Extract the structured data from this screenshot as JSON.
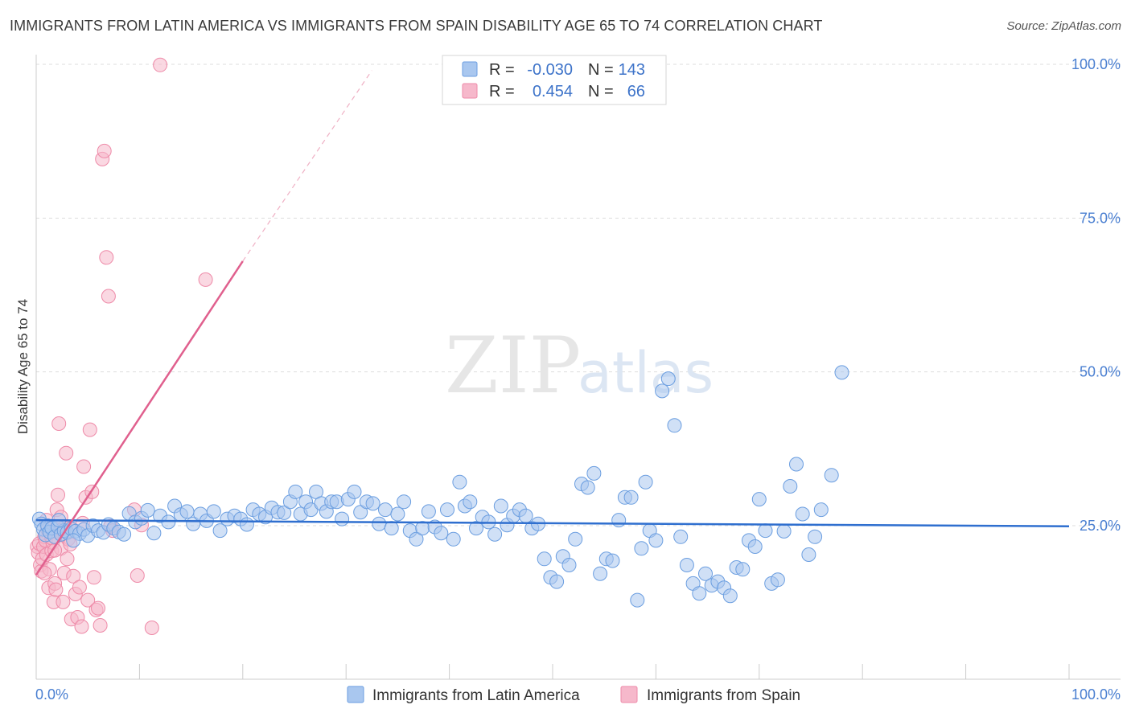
{
  "title": "IMMIGRANTS FROM LATIN AMERICA VS IMMIGRANTS FROM SPAIN DISABILITY AGE 65 TO 74 CORRELATION CHART",
  "source": "Source: ZipAtlas.com",
  "watermark": {
    "zip": "ZIP",
    "atlas": "atlas"
  },
  "colors": {
    "blue_fill": "#a9c7ef",
    "blue_stroke": "#6b9ee0",
    "blue_line": "#2f6fcf",
    "pink_fill": "#f6b8cb",
    "pink_stroke": "#ee8aa8",
    "pink_line": "#e0608e",
    "axis_text": "#4a7fd1",
    "grid": "#dddddd"
  },
  "legend": {
    "rows": [
      {
        "r_label": "R =",
        "r_value": "-0.030",
        "n_label": "N =",
        "n_value": "143",
        "series": "blue"
      },
      {
        "r_label": "R =",
        "r_value": "0.454",
        "n_label": "N =",
        "n_value": "66",
        "series": "pink"
      }
    ]
  },
  "chart_data": {
    "type": "scatter",
    "title": "IMMIGRANTS FROM LATIN AMERICA VS IMMIGRANTS FROM SPAIN DISABILITY AGE 65 TO 74 CORRELATION CHART",
    "xlabel": "",
    "ylabel": "Disability Age 65 to 74",
    "xlim": [
      0,
      100
    ],
    "ylim": [
      0,
      103
    ],
    "x_tick_labels": [
      "0.0%",
      "100.0%"
    ],
    "y_ticks": [
      25,
      50,
      75,
      100
    ],
    "y_tick_labels": [
      "25.0%",
      "50.0%",
      "75.0%",
      "100.0%"
    ],
    "grid": true,
    "legend_position": "top-center",
    "series": [
      {
        "name": "Immigrants from Latin America",
        "color": "blue",
        "r": -0.03,
        "n": 143,
        "trend": {
          "x": [
            0,
            100
          ],
          "y": [
            25.9,
            24.9
          ]
        },
        "points": [
          [
            0.3,
            26.1
          ],
          [
            0.5,
            25.3
          ],
          [
            0.7,
            24.4
          ],
          [
            0.9,
            23.5
          ],
          [
            1.1,
            25.0
          ],
          [
            1.3,
            24.0
          ],
          [
            1.5,
            24.6
          ],
          [
            1.8,
            23.2
          ],
          [
            2.1,
            24.8
          ],
          [
            2.4,
            23.6
          ],
          [
            2.7,
            24.2
          ],
          [
            3.0,
            23.9
          ],
          [
            3.4,
            24.5
          ],
          [
            3.8,
            24.1
          ],
          [
            4.2,
            23.7
          ],
          [
            4.6,
            24.4
          ],
          [
            5.0,
            23.4
          ],
          [
            5.5,
            25.0
          ],
          [
            6.0,
            24.2
          ],
          [
            6.5,
            23.9
          ],
          [
            7.0,
            25.2
          ],
          [
            7.5,
            24.6
          ],
          [
            8.0,
            24.0
          ],
          [
            8.5,
            23.6
          ],
          [
            9.0,
            27.0
          ],
          [
            9.6,
            25.6
          ],
          [
            10.2,
            26.2
          ],
          [
            10.8,
            27.5
          ],
          [
            11.4,
            23.8
          ],
          [
            12.0,
            26.6
          ],
          [
            12.8,
            25.6
          ],
          [
            13.4,
            28.2
          ],
          [
            14.0,
            26.8
          ],
          [
            14.6,
            27.3
          ],
          [
            15.2,
            25.3
          ],
          [
            15.9,
            26.9
          ],
          [
            16.5,
            25.8
          ],
          [
            17.2,
            27.3
          ],
          [
            17.8,
            24.2
          ],
          [
            18.5,
            26.1
          ],
          [
            19.2,
            26.6
          ],
          [
            19.8,
            26.1
          ],
          [
            20.4,
            25.2
          ],
          [
            21.0,
            27.6
          ],
          [
            21.6,
            26.9
          ],
          [
            22.2,
            26.4
          ],
          [
            22.8,
            27.9
          ],
          [
            23.4,
            27.2
          ],
          [
            24.0,
            27.1
          ],
          [
            24.6,
            28.9
          ],
          [
            25.1,
            30.5
          ],
          [
            25.6,
            26.9
          ],
          [
            26.1,
            28.9
          ],
          [
            26.6,
            27.6
          ],
          [
            27.1,
            30.5
          ],
          [
            27.6,
            28.6
          ],
          [
            28.1,
            27.3
          ],
          [
            28.6,
            28.9
          ],
          [
            29.1,
            28.9
          ],
          [
            29.6,
            26.1
          ],
          [
            30.2,
            29.3
          ],
          [
            30.8,
            30.5
          ],
          [
            31.4,
            27.2
          ],
          [
            32.0,
            28.9
          ],
          [
            32.6,
            28.6
          ],
          [
            33.2,
            25.3
          ],
          [
            33.8,
            27.6
          ],
          [
            34.4,
            24.6
          ],
          [
            35.0,
            26.9
          ],
          [
            35.6,
            28.9
          ],
          [
            36.2,
            24.2
          ],
          [
            36.8,
            22.8
          ],
          [
            37.4,
            24.6
          ],
          [
            38.0,
            27.3
          ],
          [
            38.6,
            24.8
          ],
          [
            39.2,
            23.8
          ],
          [
            39.8,
            27.6
          ],
          [
            40.4,
            22.8
          ],
          [
            41.0,
            32.1
          ],
          [
            41.5,
            28.2
          ],
          [
            42.0,
            28.9
          ],
          [
            42.6,
            24.6
          ],
          [
            43.2,
            26.4
          ],
          [
            43.8,
            25.6
          ],
          [
            44.4,
            23.6
          ],
          [
            45.0,
            28.2
          ],
          [
            45.6,
            25.1
          ],
          [
            46.2,
            26.6
          ],
          [
            46.8,
            27.6
          ],
          [
            47.4,
            26.6
          ],
          [
            48.0,
            24.6
          ],
          [
            48.6,
            25.3
          ],
          [
            49.2,
            19.6
          ],
          [
            49.8,
            16.6
          ],
          [
            50.4,
            15.9
          ],
          [
            51.0,
            20.0
          ],
          [
            51.6,
            18.6
          ],
          [
            52.2,
            22.8
          ],
          [
            52.8,
            31.8
          ],
          [
            53.4,
            31.2
          ],
          [
            54.0,
            33.5
          ],
          [
            54.6,
            17.2
          ],
          [
            55.2,
            19.6
          ],
          [
            55.8,
            19.3
          ],
          [
            56.4,
            25.9
          ],
          [
            57.0,
            29.6
          ],
          [
            57.6,
            29.6
          ],
          [
            58.2,
            12.9
          ],
          [
            58.6,
            21.3
          ],
          [
            59.0,
            32.1
          ],
          [
            59.4,
            24.2
          ],
          [
            60.0,
            22.6
          ],
          [
            60.6,
            46.9
          ],
          [
            61.2,
            48.9
          ],
          [
            61.8,
            41.3
          ],
          [
            62.4,
            23.2
          ],
          [
            63.0,
            18.6
          ],
          [
            63.6,
            15.6
          ],
          [
            64.2,
            14.0
          ],
          [
            64.8,
            17.2
          ],
          [
            65.4,
            15.3
          ],
          [
            66.0,
            15.9
          ],
          [
            66.6,
            14.9
          ],
          [
            67.2,
            13.6
          ],
          [
            67.8,
            18.2
          ],
          [
            68.4,
            17.9
          ],
          [
            69.0,
            22.6
          ],
          [
            69.6,
            21.6
          ],
          [
            70.0,
            29.3
          ],
          [
            70.6,
            24.2
          ],
          [
            71.2,
            15.6
          ],
          [
            71.8,
            16.2
          ],
          [
            72.4,
            24.1
          ],
          [
            73.0,
            31.4
          ],
          [
            73.6,
            35.0
          ],
          [
            74.2,
            26.9
          ],
          [
            74.8,
            20.3
          ],
          [
            75.4,
            23.2
          ],
          [
            76.0,
            27.6
          ],
          [
            77.0,
            33.2
          ],
          [
            78.0,
            49.9
          ],
          [
            2.2,
            25.9
          ],
          [
            3.6,
            22.6
          ]
        ]
      },
      {
        "name": "Immigrants from Spain",
        "color": "pink",
        "r": 0.454,
        "n": 66,
        "trend": {
          "x": [
            0,
            20
          ],
          "y": [
            17.0,
            68.0
          ]
        },
        "trend_extension": {
          "x": [
            20,
            32.5
          ],
          "y": [
            68.0,
            99.0
          ]
        },
        "points": [
          [
            0.1,
            21.6
          ],
          [
            0.2,
            20.6
          ],
          [
            0.3,
            22.1
          ],
          [
            0.4,
            18.6
          ],
          [
            0.5,
            17.6
          ],
          [
            0.6,
            19.6
          ],
          [
            0.7,
            21.6
          ],
          [
            0.8,
            23.2
          ],
          [
            0.9,
            22.6
          ],
          [
            1.0,
            20.3
          ],
          [
            1.1,
            24.4
          ],
          [
            1.2,
            14.9
          ],
          [
            1.3,
            17.9
          ],
          [
            1.4,
            23.9
          ],
          [
            1.5,
            20.9
          ],
          [
            1.6,
            22.3
          ],
          [
            1.7,
            12.6
          ],
          [
            1.8,
            15.6
          ],
          [
            1.9,
            14.6
          ],
          [
            2.0,
            27.6
          ],
          [
            2.1,
            30.0
          ],
          [
            2.2,
            41.6
          ],
          [
            2.3,
            24.2
          ],
          [
            2.4,
            21.3
          ],
          [
            2.5,
            23.6
          ],
          [
            2.6,
            12.6
          ],
          [
            2.7,
            17.3
          ],
          [
            2.9,
            36.8
          ],
          [
            3.0,
            19.6
          ],
          [
            3.1,
            22.8
          ],
          [
            3.2,
            24.6
          ],
          [
            3.4,
            9.8
          ],
          [
            3.6,
            16.8
          ],
          [
            3.8,
            13.9
          ],
          [
            4.0,
            10.1
          ],
          [
            4.2,
            15.0
          ],
          [
            4.4,
            8.6
          ],
          [
            4.6,
            34.6
          ],
          [
            4.8,
            29.6
          ],
          [
            5.0,
            12.9
          ],
          [
            5.2,
            40.6
          ],
          [
            5.4,
            30.5
          ],
          [
            5.6,
            16.6
          ],
          [
            5.8,
            11.3
          ],
          [
            6.0,
            11.6
          ],
          [
            6.2,
            8.8
          ],
          [
            6.4,
            84.6
          ],
          [
            6.6,
            85.9
          ],
          [
            6.8,
            68.6
          ],
          [
            7.0,
            62.3
          ],
          [
            7.2,
            24.9
          ],
          [
            7.4,
            24.2
          ],
          [
            9.5,
            27.6
          ],
          [
            9.8,
            16.9
          ],
          [
            10.2,
            25.1
          ],
          [
            11.2,
            8.4
          ],
          [
            12.0,
            99.9
          ],
          [
            16.4,
            65.0
          ],
          [
            1.0,
            25.9
          ],
          [
            1.5,
            23.0
          ],
          [
            2.8,
            24.9
          ],
          [
            3.3,
            22.0
          ],
          [
            0.8,
            17.3
          ],
          [
            1.8,
            21.0
          ],
          [
            2.4,
            26.4
          ],
          [
            4.5,
            25.4
          ]
        ]
      }
    ]
  },
  "bottom_legend": [
    {
      "label": "Immigrants from Latin America",
      "color": "blue"
    },
    {
      "label": "Immigrants from Spain",
      "color": "pink"
    }
  ]
}
